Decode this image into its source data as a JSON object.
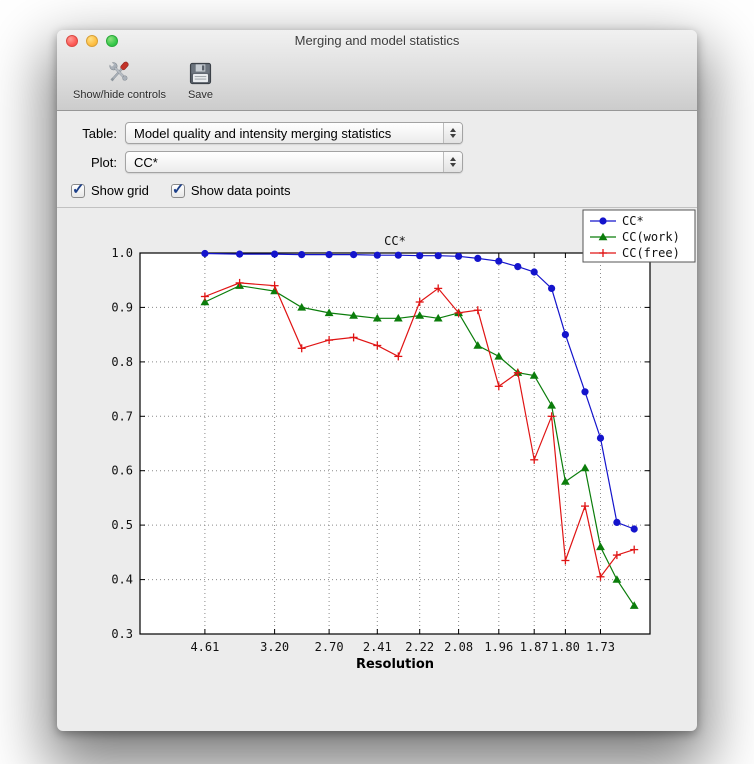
{
  "window": {
    "title": "Merging and model statistics"
  },
  "toolbar": {
    "items": [
      {
        "label": "Show/hide controls",
        "icon": "tools-icon"
      },
      {
        "label": "Save",
        "icon": "save-icon"
      }
    ]
  },
  "controls": {
    "table_label": "Table:",
    "table_value": "Model quality and intensity merging statistics",
    "plot_label": "Plot:",
    "plot_value": "CC*",
    "checkboxes": [
      {
        "label": "Show grid",
        "checked": true
      },
      {
        "label": "Show data points",
        "checked": true
      }
    ]
  },
  "icons": {
    "check_glyph": "✓"
  },
  "chart_data": {
    "type": "line",
    "title": "CC*",
    "xlabel": "Resolution",
    "ylabel": "",
    "grid": true,
    "legend_position": "upper right",
    "x_scale": "inverse_d_squared",
    "x_range_s2": [
      0.0,
      0.37
    ],
    "ylim": [
      0.3,
      1.0
    ],
    "yticks": [
      0.3,
      0.4,
      0.5,
      0.6,
      0.7,
      0.8,
      0.9,
      1.0
    ],
    "xticks": [
      "4.61",
      "3.20",
      "2.70",
      "2.41",
      "2.22",
      "2.08",
      "1.96",
      "1.87",
      "1.80",
      "1.73"
    ],
    "x_resolutions": [
      4.61,
      3.72,
      3.2,
      2.92,
      2.7,
      2.54,
      2.41,
      2.31,
      2.22,
      2.15,
      2.08,
      2.02,
      1.96,
      1.91,
      1.87,
      1.83,
      1.8,
      1.76,
      1.73,
      1.7,
      1.67
    ],
    "series": [
      {
        "name": "CC*",
        "color": "#1414cc",
        "marker": "circle",
        "values": [
          0.999,
          0.998,
          0.998,
          0.997,
          0.997,
          0.997,
          0.996,
          0.996,
          0.995,
          0.995,
          0.994,
          0.99,
          0.985,
          0.975,
          0.965,
          0.935,
          0.85,
          0.745,
          0.66,
          0.505,
          0.493
        ]
      },
      {
        "name": "CC(work)",
        "color": "#0b7d0b",
        "marker": "triangle",
        "values": [
          0.91,
          0.94,
          0.93,
          0.9,
          0.89,
          0.885,
          0.88,
          0.88,
          0.885,
          0.88,
          0.89,
          0.83,
          0.81,
          0.78,
          0.775,
          0.72,
          0.58,
          0.605,
          0.46,
          0.4,
          0.352
        ]
      },
      {
        "name": "CC(free)",
        "color": "#e01414",
        "marker": "plus",
        "values": [
          0.92,
          0.945,
          0.94,
          0.825,
          0.84,
          0.845,
          0.83,
          0.81,
          0.91,
          0.935,
          0.89,
          0.895,
          0.755,
          0.78,
          0.62,
          0.7,
          0.435,
          0.535,
          0.405,
          0.445,
          0.455
        ]
      }
    ]
  }
}
